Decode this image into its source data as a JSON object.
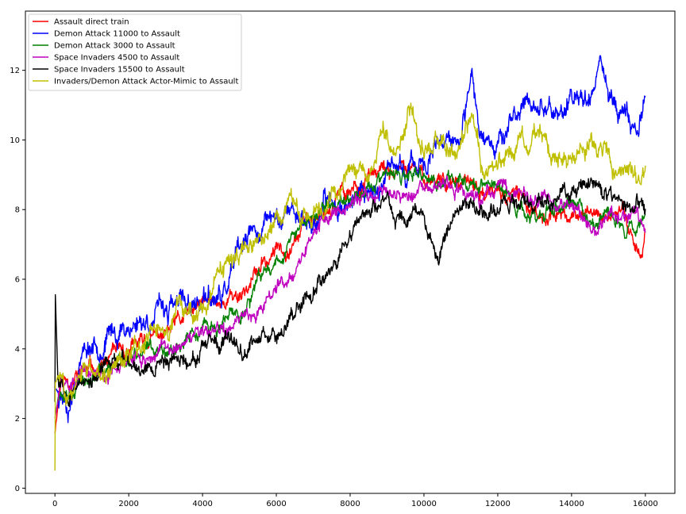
{
  "chart_data": {
    "type": "line",
    "title": "",
    "xlabel": "",
    "ylabel": "",
    "xlim": [
      -800,
      16800
    ],
    "ylim": [
      -0.15,
      13.7
    ],
    "grid": false,
    "legend_position": "top-left",
    "x_ticks": [
      0,
      2000,
      4000,
      6000,
      8000,
      10000,
      12000,
      14000,
      16000
    ],
    "x_tick_labels": [
      "0",
      "2000",
      "4000",
      "6000",
      "8000",
      "10000",
      "12000",
      "14000",
      "16000"
    ],
    "y_ticks": [
      0,
      2,
      4,
      6,
      8,
      10,
      12
    ],
    "y_tick_labels": [
      "0",
      "2",
      "4",
      "6",
      "8",
      "10",
      "12"
    ],
    "series": [
      {
        "name": "Assault direct train",
        "color": "#ff0000",
        "noise": 0.22,
        "seed": 11,
        "x": [
          0,
          150,
          500,
          1000,
          1500,
          2000,
          2500,
          3000,
          3500,
          4000,
          4500,
          5000,
          5500,
          6000,
          6500,
          7000,
          7500,
          8000,
          8500,
          9000,
          9500,
          10000,
          10500,
          11000,
          11500,
          12000,
          12500,
          13000,
          13500,
          14000,
          14500,
          15000,
          15500,
          15900,
          16000
        ],
        "values": [
          1.6,
          3.1,
          3.2,
          3.4,
          3.6,
          3.9,
          4.2,
          4.4,
          4.8,
          5.2,
          5.4,
          5.6,
          6.2,
          6.8,
          7.3,
          7.8,
          8.2,
          8.6,
          8.9,
          9.0,
          9.1,
          8.9,
          9.0,
          8.7,
          8.5,
          8.4,
          8.3,
          8.0,
          7.9,
          7.8,
          7.9,
          7.9,
          7.8,
          6.6,
          7.6
        ]
      },
      {
        "name": "Demon Attack 11000 to Assault",
        "color": "#0000ff",
        "noise": 0.3,
        "seed": 23,
        "x": [
          0,
          100,
          400,
          700,
          1000,
          1500,
          2000,
          2500,
          3000,
          3500,
          4000,
          4500,
          5000,
          5500,
          6000,
          6500,
          7000,
          7500,
          8000,
          8500,
          9000,
          9500,
          10000,
          10500,
          11000,
          11300,
          11500,
          12000,
          12500,
          13000,
          13500,
          14000,
          14500,
          14800,
          15000,
          15500,
          15800,
          16000
        ],
        "values": [
          2.8,
          2.9,
          2.6,
          4.0,
          4.2,
          4.4,
          4.7,
          4.9,
          5.1,
          5.2,
          5.4,
          5.3,
          6.6,
          7.4,
          7.8,
          8.0,
          7.6,
          8.2,
          8.3,
          8.6,
          8.8,
          9.1,
          9.4,
          9.6,
          9.9,
          11.4,
          10.3,
          10.2,
          10.6,
          11.2,
          10.8,
          11.0,
          11.6,
          12.4,
          11.3,
          10.8,
          10.0,
          11.5
        ]
      },
      {
        "name": "Demon Attack 3000 to Assault",
        "color": "#008000",
        "noise": 0.2,
        "seed": 37,
        "x": [
          0,
          150,
          500,
          1000,
          1500,
          2000,
          2500,
          3000,
          3500,
          4000,
          4500,
          5000,
          5500,
          6000,
          6500,
          7000,
          7500,
          8000,
          8500,
          9000,
          9500,
          10000,
          10500,
          11000,
          11500,
          12000,
          12500,
          13000,
          13500,
          14000,
          14500,
          15000,
          15500,
          16000
        ],
        "values": [
          2.1,
          3.0,
          3.1,
          3.2,
          3.4,
          3.7,
          3.9,
          4.1,
          4.3,
          4.5,
          4.6,
          5.0,
          5.8,
          6.6,
          7.3,
          7.8,
          8.1,
          8.4,
          8.7,
          8.9,
          8.8,
          8.9,
          8.7,
          8.9,
          8.8,
          8.7,
          8.0,
          7.8,
          8.0,
          8.2,
          7.6,
          7.8,
          7.5,
          7.8
        ]
      },
      {
        "name": "Space Invaders 4500 to Assault",
        "color": "#bf00bf",
        "noise": 0.2,
        "seed": 51,
        "x": [
          0,
          150,
          500,
          1000,
          1500,
          2000,
          2500,
          3000,
          3500,
          4000,
          4500,
          5000,
          5500,
          6000,
          6500,
          7000,
          7500,
          8000,
          8500,
          9000,
          9500,
          10000,
          10500,
          11000,
          11500,
          12000,
          12500,
          13000,
          13500,
          14000,
          14500,
          15000,
          15500,
          16000
        ],
        "values": [
          2.0,
          2.9,
          3.0,
          3.2,
          3.4,
          3.6,
          3.8,
          4.0,
          4.1,
          4.3,
          4.4,
          4.8,
          5.2,
          5.8,
          6.4,
          7.4,
          7.9,
          8.2,
          8.4,
          8.6,
          8.4,
          8.5,
          8.6,
          8.4,
          8.3,
          8.6,
          8.4,
          8.3,
          8.2,
          8.0,
          7.3,
          7.6,
          7.8,
          7.6
        ]
      },
      {
        "name": "Space Invaders 15500 to Assault",
        "color": "#000000",
        "noise": 0.22,
        "seed": 67,
        "x": [
          0,
          5,
          80,
          400,
          1000,
          1500,
          2000,
          2500,
          3000,
          3500,
          4000,
          4500,
          5000,
          5500,
          6000,
          6500,
          7000,
          7500,
          8000,
          8500,
          9000,
          9500,
          10000,
          10400,
          10800,
          11000,
          11500,
          12000,
          12500,
          13000,
          13500,
          14000,
          14500,
          15000,
          15500,
          16000
        ],
        "values": [
          2.5,
          5.8,
          3.2,
          2.8,
          3.2,
          3.5,
          3.6,
          3.6,
          3.7,
          3.8,
          3.9,
          4.0,
          4.1,
          4.3,
          4.6,
          5.2,
          5.8,
          6.6,
          7.3,
          7.9,
          8.1,
          7.6,
          8.0,
          6.6,
          7.8,
          8.2,
          8.0,
          8.2,
          8.3,
          8.2,
          8.1,
          8.5,
          8.8,
          8.4,
          8.1,
          8.0
        ]
      },
      {
        "name": "Invaders/Demon Attack Actor-Mimic to Assault",
        "color": "#bfbf00",
        "noise": 0.28,
        "seed": 83,
        "x": [
          0,
          10,
          80,
          500,
          1000,
          1500,
          2000,
          2500,
          3000,
          3500,
          4000,
          4500,
          5000,
          5500,
          6000,
          6500,
          7000,
          7500,
          8000,
          8500,
          8900,
          9200,
          9600,
          10000,
          10500,
          11000,
          11300,
          11600,
          12000,
          12500,
          13000,
          13500,
          14000,
          14500,
          15000,
          15500,
          16000
        ],
        "values": [
          0.5,
          3.0,
          3.2,
          2.8,
          3.3,
          3.6,
          3.9,
          4.2,
          4.6,
          5.0,
          5.3,
          5.8,
          6.6,
          7.2,
          7.7,
          8.0,
          8.1,
          8.6,
          9.0,
          9.2,
          10.8,
          9.6,
          10.8,
          9.8,
          10.0,
          9.6,
          10.6,
          9.3,
          9.2,
          9.9,
          10.1,
          9.6,
          9.8,
          9.9,
          9.7,
          9.0,
          8.6
        ]
      }
    ]
  }
}
